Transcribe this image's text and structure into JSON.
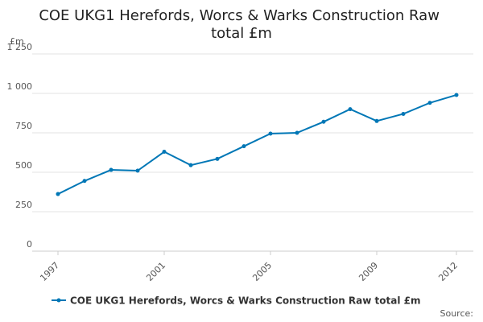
{
  "chart_data": {
    "type": "line",
    "title": "COE UKG1 Herefords, Worcs & Warks Construction Raw total £m",
    "y_label": "£m",
    "source": "Source:",
    "x": [
      1997,
      1998,
      1999,
      2000,
      2001,
      2002,
      2003,
      2004,
      2005,
      2006,
      2007,
      2008,
      2009,
      2010,
      2011,
      2012
    ],
    "series": [
      {
        "name": "COE UKG1 Herefords, Worcs & Warks Construction Raw total £m",
        "color": "#0077b6",
        "values": [
          362,
          445,
          515,
          510,
          630,
          545,
          585,
          665,
          745,
          750,
          820,
          900,
          825,
          870,
          940,
          990
        ]
      }
    ],
    "xlim": [
      1997,
      2012
    ],
    "xticks": [
      1997,
      2001,
      2005,
      2009,
      2012
    ],
    "ylim": [
      0,
      1250
    ],
    "yticks": [
      0,
      250,
      500,
      750,
      {
        "value": 1000,
        "label": "1 000"
      },
      {
        "value": 1250,
        "label": "1 250"
      }
    ],
    "grid": true
  }
}
